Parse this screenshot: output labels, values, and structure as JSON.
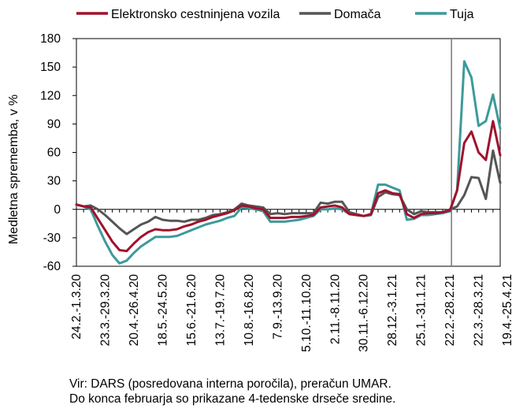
{
  "chart_data": {
    "type": "line",
    "title": "",
    "xlabel": "",
    "ylabel": "Medletna sprememba, v %",
    "ylim": [
      -60,
      180
    ],
    "yticks": [
      180,
      150,
      120,
      90,
      60,
      30,
      0,
      -30,
      -60
    ],
    "grid": false,
    "legend_position": "top",
    "vertical_marker_after": "22.2.-28.2.21",
    "x_tick_labels": [
      "24.2.-1.3.20",
      "23.3.-29.3.20",
      "20.4.-26.4.20",
      "18.5.-24.5.20",
      "15.6.-21.6.20",
      "13.7.-19.7.20",
      "10.8.-16.8.20",
      "7.9.-13.9.20",
      "5.10.-11.10.20",
      "2.11.-8.11.20",
      "30.11.-6.12.20",
      "28.12.-3.1.21",
      "25.1.-31.1.21",
      "22.2.-28.2.21",
      "22.3.-28.3.21",
      "19.4.-25.4.21"
    ],
    "x_tick_positions": [
      0,
      4,
      8,
      12,
      16,
      20,
      24,
      28,
      32,
      36,
      40,
      44,
      48,
      52,
      56,
      60
    ],
    "series": [
      {
        "name": "Elektronsko cestninjena vozila",
        "color": "#a0122d",
        "values": [
          5,
          3,
          2,
          -10,
          -22,
          -34,
          -43,
          -44,
          -36,
          -29,
          -24,
          -21,
          -22,
          -22,
          -21,
          -18,
          -16,
          -13,
          -11,
          -8,
          -6,
          -4,
          -1,
          4,
          3,
          1,
          0,
          -9,
          -9,
          -9,
          -8,
          -8,
          -7,
          -6,
          2,
          3,
          4,
          2,
          -5,
          -6,
          -7,
          -5,
          17,
          20,
          17,
          16,
          -5,
          -9,
          -5,
          -4,
          -4,
          -3,
          -1,
          20,
          70,
          82,
          60,
          52,
          93,
          57
        ]
      },
      {
        "name": "Domača",
        "color": "#555555",
        "values": [
          5,
          3,
          4,
          0,
          -6,
          -13,
          -20,
          -26,
          -21,
          -16,
          -13,
          -8,
          -11,
          -12,
          -12,
          -13,
          -11,
          -11,
          -9,
          -6,
          -5,
          -3,
          0,
          6,
          4,
          3,
          2,
          -5,
          -4,
          -5,
          -4,
          -4,
          -4,
          -4,
          7,
          6,
          8,
          8,
          -3,
          -5,
          -7,
          -6,
          13,
          18,
          16,
          15,
          0,
          -5,
          -2,
          -3,
          -3,
          -3,
          0,
          3,
          15,
          34,
          33,
          11,
          62,
          28
        ]
      },
      {
        "name": "Tuja",
        "color": "#3d9a9a",
        "values": [
          5,
          3,
          0,
          -18,
          -34,
          -48,
          -57,
          -54,
          -46,
          -39,
          -34,
          -29,
          -29,
          -29,
          -28,
          -25,
          -22,
          -19,
          -16,
          -14,
          -12,
          -9,
          -7,
          2,
          1,
          0,
          -2,
          -13,
          -13,
          -13,
          -12,
          -11,
          -9,
          -7,
          0,
          0,
          1,
          0,
          -5,
          -6,
          -7,
          -5,
          26,
          26,
          23,
          20,
          -11,
          -10,
          -6,
          -6,
          -5,
          -4,
          -2,
          20,
          156,
          139,
          88,
          93,
          121,
          85
        ]
      }
    ]
  },
  "notes": {
    "line1": "Vir: DARS (posredovana interna poročila), preračun UMAR.",
    "line2": "Do konca februarja so prikazane 4-tedenske drseče sredine."
  }
}
